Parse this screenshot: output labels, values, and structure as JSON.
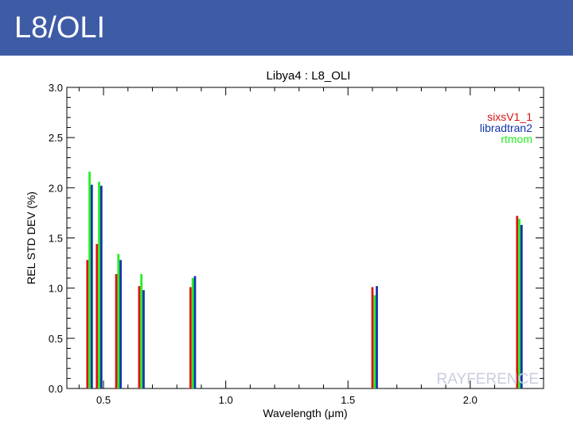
{
  "header": {
    "title": "L8/OLI"
  },
  "chart_data": {
    "type": "bar",
    "title": "Libya4 : L8_OLI",
    "xlabel": "Wavelength (μm)",
    "ylabel": "REL STD DEV (%)",
    "xlim": [
      0.35,
      2.3
    ],
    "ylim": [
      0,
      3
    ],
    "xticks": [
      "0.5",
      "1.0",
      "1.5",
      "2.0"
    ],
    "xtick_values": [
      0.5,
      1.0,
      1.5,
      2.0
    ],
    "yticks": [
      "0.0",
      "0.5",
      "1.0",
      "1.5",
      "2.0",
      "2.5",
      "3.0"
    ],
    "ytick_values": [
      0,
      0.5,
      1.0,
      1.5,
      2.0,
      2.5,
      3.0
    ],
    "wavelengths": [
      0.443,
      0.482,
      0.561,
      0.655,
      0.865,
      1.609,
      2.201
    ],
    "bar_width": 0.009,
    "legend_position": "top-right",
    "series": [
      {
        "name": "sixsV1_1",
        "color": "#dd1111",
        "values": [
          1.28,
          1.44,
          1.14,
          1.02,
          1.01,
          1.01,
          1.72
        ]
      },
      {
        "name": "rtmom",
        "color": "#22ee22",
        "values": [
          2.16,
          2.06,
          1.34,
          1.14,
          1.1,
          0.93,
          1.69
        ]
      },
      {
        "name": "libradtran2",
        "color": "#1133aa",
        "values": [
          2.03,
          2.02,
          1.28,
          0.98,
          1.12,
          1.02,
          1.63
        ]
      }
    ],
    "legend_order": [
      "sixsV1_1",
      "libradtran2",
      "rtmom"
    ],
    "watermark": "RAYFERENCE"
  }
}
